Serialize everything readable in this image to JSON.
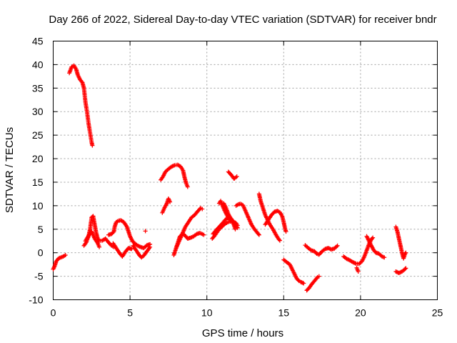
{
  "chart_data": {
    "type": "scatter",
    "title": "Day 266 of 2022, Sidereal Day-to-day VTEC variation (SDTVAR) for receiver bndr",
    "xlabel": "GPS time / hours",
    "ylabel": "SDTVAR / TECUs",
    "xlim": [
      0,
      25
    ],
    "ylim": [
      -10,
      45
    ],
    "xticks": [
      0,
      5,
      10,
      15,
      20,
      25
    ],
    "yticks": [
      -10,
      -5,
      0,
      5,
      10,
      15,
      20,
      25,
      30,
      35,
      40,
      45
    ],
    "xtick_labels": [
      "0",
      "5",
      "10",
      "15",
      "20",
      "25"
    ],
    "ytick_labels": [
      "-10",
      "-5",
      "0",
      "5",
      "10",
      "15",
      "20",
      "25",
      "30",
      "35",
      "40",
      "45"
    ],
    "grid": true,
    "marker": "+",
    "color": "#ff0000",
    "segments": [
      [
        [
          0.0,
          -3.5
        ],
        [
          0.1,
          -2.8
        ],
        [
          0.2,
          -1.8
        ],
        [
          0.35,
          -1.2
        ],
        [
          0.5,
          -1.0
        ],
        [
          0.65,
          -0.8
        ],
        [
          0.8,
          -0.5
        ]
      ],
      [
        [
          1.05,
          38.2
        ],
        [
          1.2,
          39.5
        ],
        [
          1.35,
          39.8
        ],
        [
          1.5,
          39.0
        ],
        [
          1.6,
          37.8
        ],
        [
          1.75,
          36.8
        ],
        [
          1.9,
          36.2
        ],
        [
          2.0,
          35.0
        ],
        [
          2.1,
          32.0
        ],
        [
          2.2,
          30.0
        ],
        [
          2.3,
          27.5
        ],
        [
          2.4,
          25.5
        ],
        [
          2.5,
          23.5
        ],
        [
          2.55,
          22.8
        ]
      ],
      [
        [
          2.0,
          1.5
        ],
        [
          2.15,
          2.2
        ],
        [
          2.3,
          3.5
        ],
        [
          2.4,
          5.0
        ],
        [
          2.5,
          7.5
        ],
        [
          2.6,
          7.8
        ],
        [
          2.7,
          6.0
        ],
        [
          2.8,
          4.2
        ],
        [
          2.9,
          3.0
        ],
        [
          3.0,
          2.5
        ],
        [
          3.2,
          2.6
        ],
        [
          3.4,
          3.0
        ],
        [
          3.6,
          2.2
        ],
        [
          3.8,
          1.5
        ],
        [
          3.95,
          1.2
        ]
      ],
      [
        [
          2.1,
          2.5
        ],
        [
          2.3,
          3.6
        ],
        [
          2.5,
          4.5
        ],
        [
          2.7,
          3.0
        ],
        [
          2.9,
          2.0
        ],
        [
          3.0,
          1.2
        ]
      ],
      [
        [
          3.6,
          3.8
        ],
        [
          3.8,
          4.0
        ],
        [
          3.95,
          4.5
        ],
        [
          4.0,
          5.5
        ],
        [
          4.1,
          6.5
        ],
        [
          4.25,
          6.8
        ],
        [
          4.4,
          6.9
        ],
        [
          4.6,
          6.5
        ],
        [
          4.8,
          5.5
        ],
        [
          5.0,
          3.5
        ],
        [
          5.15,
          2.5
        ],
        [
          5.3,
          2.0
        ],
        [
          5.5,
          1.5
        ],
        [
          5.7,
          1.2
        ],
        [
          5.9,
          1.0
        ],
        [
          6.1,
          1.6
        ],
        [
          6.3,
          1.8
        ]
      ],
      [
        [
          3.9,
          2.0
        ],
        [
          4.1,
          1.0
        ],
        [
          4.3,
          0.0
        ],
        [
          4.5,
          -0.8
        ],
        [
          4.7,
          0.2
        ],
        [
          4.9,
          1.0
        ],
        [
          5.1,
          0.8
        ]
      ],
      [
        [
          5.2,
          1.5
        ],
        [
          5.4,
          0.5
        ],
        [
          5.6,
          -0.5
        ],
        [
          5.75,
          -1.0
        ],
        [
          5.9,
          -0.6
        ],
        [
          6.1,
          0.3
        ],
        [
          6.3,
          1.2
        ]
      ],
      [
        [
          6.0,
          4.6
        ]
      ],
      [
        [
          7.1,
          8.5
        ],
        [
          7.25,
          9.6
        ],
        [
          7.4,
          10.5
        ],
        [
          7.5,
          11.5
        ],
        [
          7.6,
          10.8
        ]
      ],
      [
        [
          7.0,
          15.5
        ],
        [
          7.15,
          16.2
        ],
        [
          7.3,
          17.2
        ],
        [
          7.5,
          17.8
        ],
        [
          7.7,
          18.3
        ],
        [
          7.9,
          18.6
        ],
        [
          8.1,
          18.7
        ],
        [
          8.3,
          18.3
        ],
        [
          8.45,
          17.5
        ],
        [
          8.55,
          16.0
        ],
        [
          8.65,
          14.8
        ],
        [
          8.75,
          14.0
        ]
      ],
      [
        [
          7.85,
          -0.5
        ],
        [
          7.95,
          0.5
        ],
        [
          8.1,
          2.0
        ],
        [
          8.25,
          3.5
        ],
        [
          8.45,
          4.0
        ],
        [
          8.6,
          3.6
        ],
        [
          8.75,
          3.0
        ],
        [
          8.95,
          3.2
        ],
        [
          9.15,
          3.5
        ],
        [
          9.35,
          4.0
        ],
        [
          9.55,
          4.2
        ],
        [
          9.8,
          3.8
        ]
      ],
      [
        [
          8.0,
          1.0
        ],
        [
          8.2,
          2.5
        ],
        [
          8.4,
          4.0
        ],
        [
          8.6,
          5.5
        ],
        [
          8.8,
          6.5
        ],
        [
          9.0,
          7.5
        ],
        [
          9.2,
          8.0
        ],
        [
          9.4,
          8.8
        ],
        [
          9.6,
          9.5
        ],
        [
          9.7,
          9.3
        ]
      ],
      [
        [
          10.35,
          3.0
        ],
        [
          10.5,
          3.6
        ],
        [
          10.65,
          4.3
        ],
        [
          10.8,
          5.0
        ],
        [
          11.0,
          5.6
        ],
        [
          11.2,
          6.2
        ],
        [
          11.45,
          6.6
        ],
        [
          11.7,
          6.7
        ],
        [
          11.9,
          6.3
        ],
        [
          12.0,
          5.8
        ]
      ],
      [
        [
          10.4,
          4.0
        ],
        [
          10.6,
          4.8
        ],
        [
          10.8,
          5.5
        ],
        [
          11.0,
          6.2
        ],
        [
          11.2,
          7.0
        ],
        [
          11.4,
          7.6
        ],
        [
          11.6,
          7.2
        ],
        [
          11.75,
          6.0
        ],
        [
          11.85,
          5.0
        ]
      ],
      [
        [
          10.8,
          10.5
        ],
        [
          10.9,
          11.0
        ],
        [
          11.0,
          10.2
        ],
        [
          11.15,
          9.0
        ],
        [
          11.3,
          8.0
        ],
        [
          11.5,
          7.0
        ],
        [
          11.7,
          6.5
        ]
      ],
      [
        [
          11.1,
          10.5
        ],
        [
          11.25,
          9.5
        ],
        [
          11.4,
          8.2
        ],
        [
          11.6,
          7.0
        ],
        [
          11.8,
          6.0
        ],
        [
          12.0,
          5.3
        ]
      ],
      [
        [
          11.4,
          17.2
        ],
        [
          11.6,
          16.5
        ],
        [
          11.75,
          15.8
        ]
      ],
      [
        [
          11.8,
          15.8
        ],
        [
          11.95,
          16.2
        ]
      ],
      [
        [
          11.9,
          10.0
        ],
        [
          12.05,
          10.3
        ],
        [
          12.2,
          10.4
        ],
        [
          12.35,
          10.1
        ],
        [
          12.5,
          9.0
        ],
        [
          12.7,
          7.5
        ],
        [
          12.9,
          6.0
        ],
        [
          13.1,
          5.0
        ],
        [
          13.3,
          4.2
        ],
        [
          13.4,
          3.8
        ]
      ],
      [
        [
          13.4,
          12.5
        ],
        [
          13.5,
          11.0
        ],
        [
          13.65,
          9.5
        ],
        [
          13.8,
          8.0
        ],
        [
          13.95,
          7.0
        ],
        [
          14.1,
          6.0
        ],
        [
          14.3,
          5.0
        ],
        [
          14.5,
          3.8
        ],
        [
          14.65,
          3.0
        ],
        [
          14.75,
          2.6
        ]
      ],
      [
        [
          13.8,
          6.0
        ],
        [
          14.0,
          7.0
        ],
        [
          14.2,
          8.0
        ],
        [
          14.4,
          8.7
        ],
        [
          14.6,
          8.9
        ],
        [
          14.75,
          8.6
        ],
        [
          14.9,
          7.8
        ],
        [
          15.0,
          6.5
        ],
        [
          15.1,
          5.0
        ],
        [
          15.15,
          4.5
        ]
      ],
      [
        [
          15.0,
          -1.5
        ],
        [
          15.2,
          -2.0
        ],
        [
          15.4,
          -2.5
        ],
        [
          15.55,
          -3.5
        ],
        [
          15.7,
          -4.5
        ],
        [
          15.85,
          -5.5
        ],
        [
          16.0,
          -6.0
        ]
      ],
      [
        [
          16.1,
          -6.2
        ],
        [
          16.3,
          -6.5
        ]
      ],
      [
        [
          16.5,
          -8.0
        ],
        [
          16.65,
          -7.5
        ],
        [
          16.8,
          -6.8
        ],
        [
          17.0,
          -6.0
        ],
        [
          17.2,
          -5.2
        ],
        [
          17.3,
          -5.0
        ]
      ],
      [
        [
          16.4,
          1.6
        ],
        [
          16.6,
          1.0
        ],
        [
          16.8,
          0.5
        ],
        [
          17.0,
          0.3
        ],
        [
          17.15,
          -0.2
        ],
        [
          17.3,
          -0.4
        ],
        [
          17.5,
          0.3
        ],
        [
          17.7,
          0.8
        ],
        [
          17.9,
          1.0
        ],
        [
          18.1,
          0.7
        ],
        [
          18.3,
          0.9
        ],
        [
          18.5,
          1.5
        ]
      ],
      [
        [
          18.9,
          -0.8
        ],
        [
          19.1,
          -1.3
        ],
        [
          19.3,
          -1.6
        ],
        [
          19.5,
          -2.0
        ],
        [
          19.7,
          -2.3
        ],
        [
          19.9,
          -2.4
        ],
        [
          20.1,
          -1.8
        ],
        [
          20.25,
          -0.8
        ],
        [
          20.4,
          0.5
        ],
        [
          20.55,
          1.8
        ],
        [
          20.7,
          2.8
        ],
        [
          20.8,
          3.2
        ]
      ],
      [
        [
          19.75,
          -3.2
        ],
        [
          19.85,
          -4.0
        ]
      ],
      [
        [
          20.4,
          3.5
        ],
        [
          20.55,
          2.5
        ],
        [
          20.7,
          1.5
        ],
        [
          20.85,
          0.6
        ],
        [
          21.0,
          0.0
        ],
        [
          21.2,
          -0.2
        ],
        [
          21.4,
          -0.8
        ],
        [
          21.55,
          -1.0
        ]
      ],
      [
        [
          22.3,
          5.5
        ],
        [
          22.4,
          4.5
        ],
        [
          22.5,
          3.0
        ],
        [
          22.6,
          1.5
        ],
        [
          22.7,
          0.0
        ],
        [
          22.8,
          -1.2
        ],
        [
          22.9,
          -0.2
        ],
        [
          22.95,
          0.0
        ]
      ],
      [
        [
          22.3,
          -4.0
        ],
        [
          22.5,
          -4.3
        ],
        [
          22.7,
          -4.0
        ],
        [
          22.85,
          -3.6
        ],
        [
          22.95,
          -3.3
        ]
      ]
    ]
  }
}
